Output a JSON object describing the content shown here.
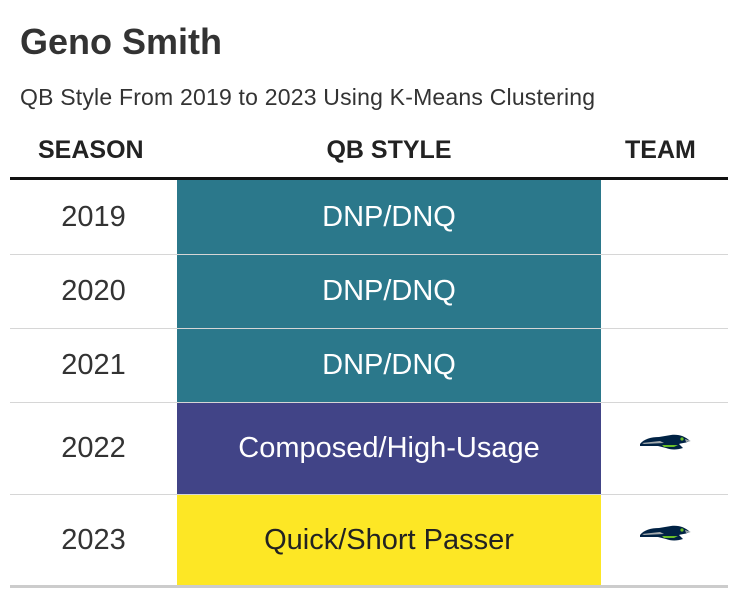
{
  "title": "Geno Smith",
  "subtitle": "QB Style From 2019 to 2023 Using K-Means Clustering",
  "columns": {
    "season": "SEASON",
    "style": "QB STYLE",
    "team": "TEAM"
  },
  "colors": {
    "dnp": "#2b788b",
    "composed": "#414487",
    "quick": "#fde725",
    "logo_navy": "#002244",
    "logo_green": "#69be28",
    "logo_grey": "#a5acaf"
  },
  "chart_data": {
    "type": "table",
    "columns": [
      "SEASON",
      "QB STYLE",
      "TEAM"
    ],
    "rows": [
      {
        "season": "2019",
        "style": "DNP/DNQ",
        "color": "#2b788b",
        "text_color": "#ffffff",
        "team_logo": ""
      },
      {
        "season": "2020",
        "style": "DNP/DNQ",
        "color": "#2b788b",
        "text_color": "#ffffff",
        "team_logo": ""
      },
      {
        "season": "2021",
        "style": "DNP/DNQ",
        "color": "#2b788b",
        "text_color": "#ffffff",
        "team_logo": ""
      },
      {
        "season": "2022",
        "style": "Composed/High-Usage",
        "color": "#414487",
        "text_color": "#ffffff",
        "team_logo": "seahawks-logo-icon"
      },
      {
        "season": "2023",
        "style": "Quick/Short Passer",
        "color": "#fde725",
        "text_color": "#222222",
        "team_logo": "seahawks-logo-icon"
      }
    ]
  }
}
